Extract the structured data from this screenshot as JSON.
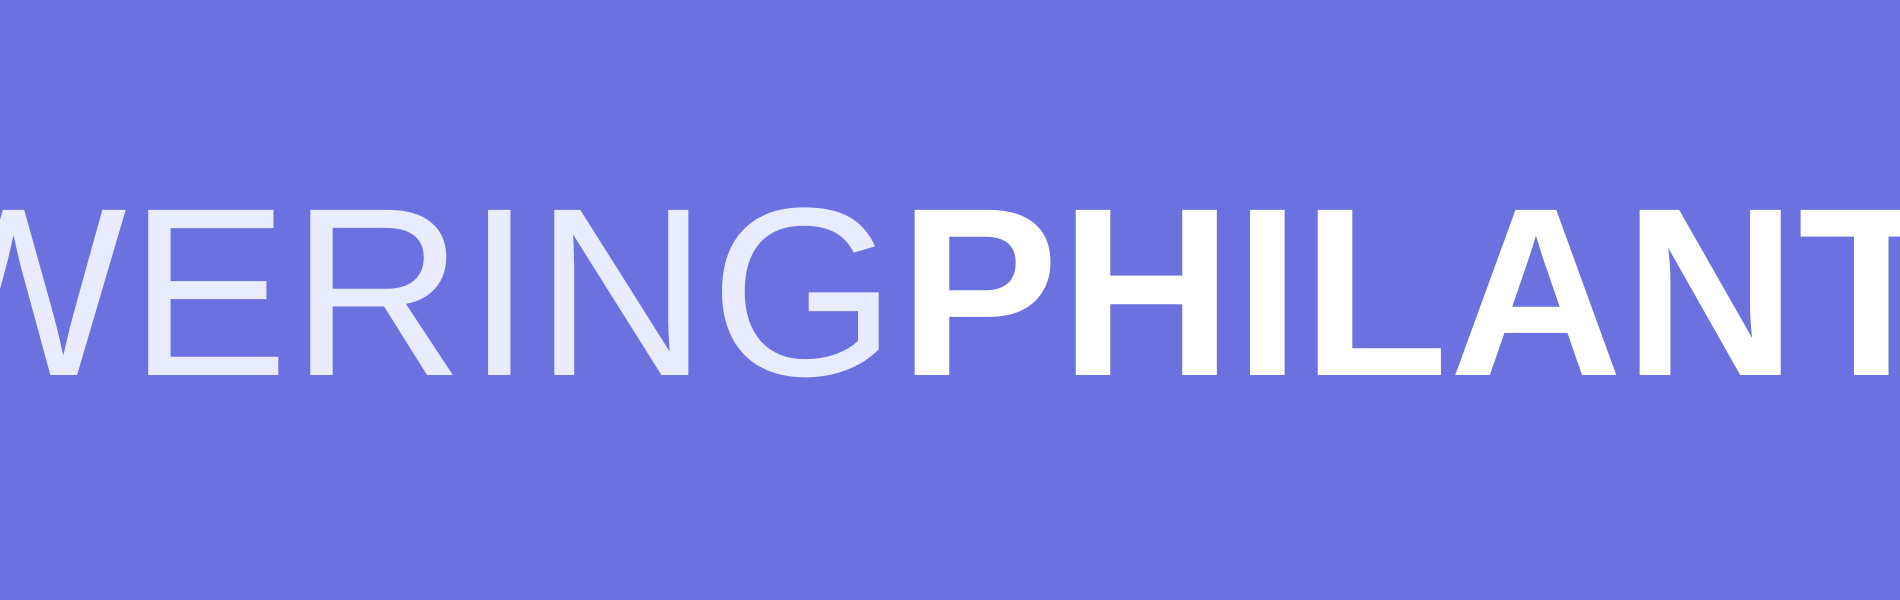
{
  "banner": {
    "background_color": "#6b72df",
    "text_color": "#ffffff",
    "wordmark_light": "WERING",
    "wordmark_bold": "PHILANT"
  }
}
